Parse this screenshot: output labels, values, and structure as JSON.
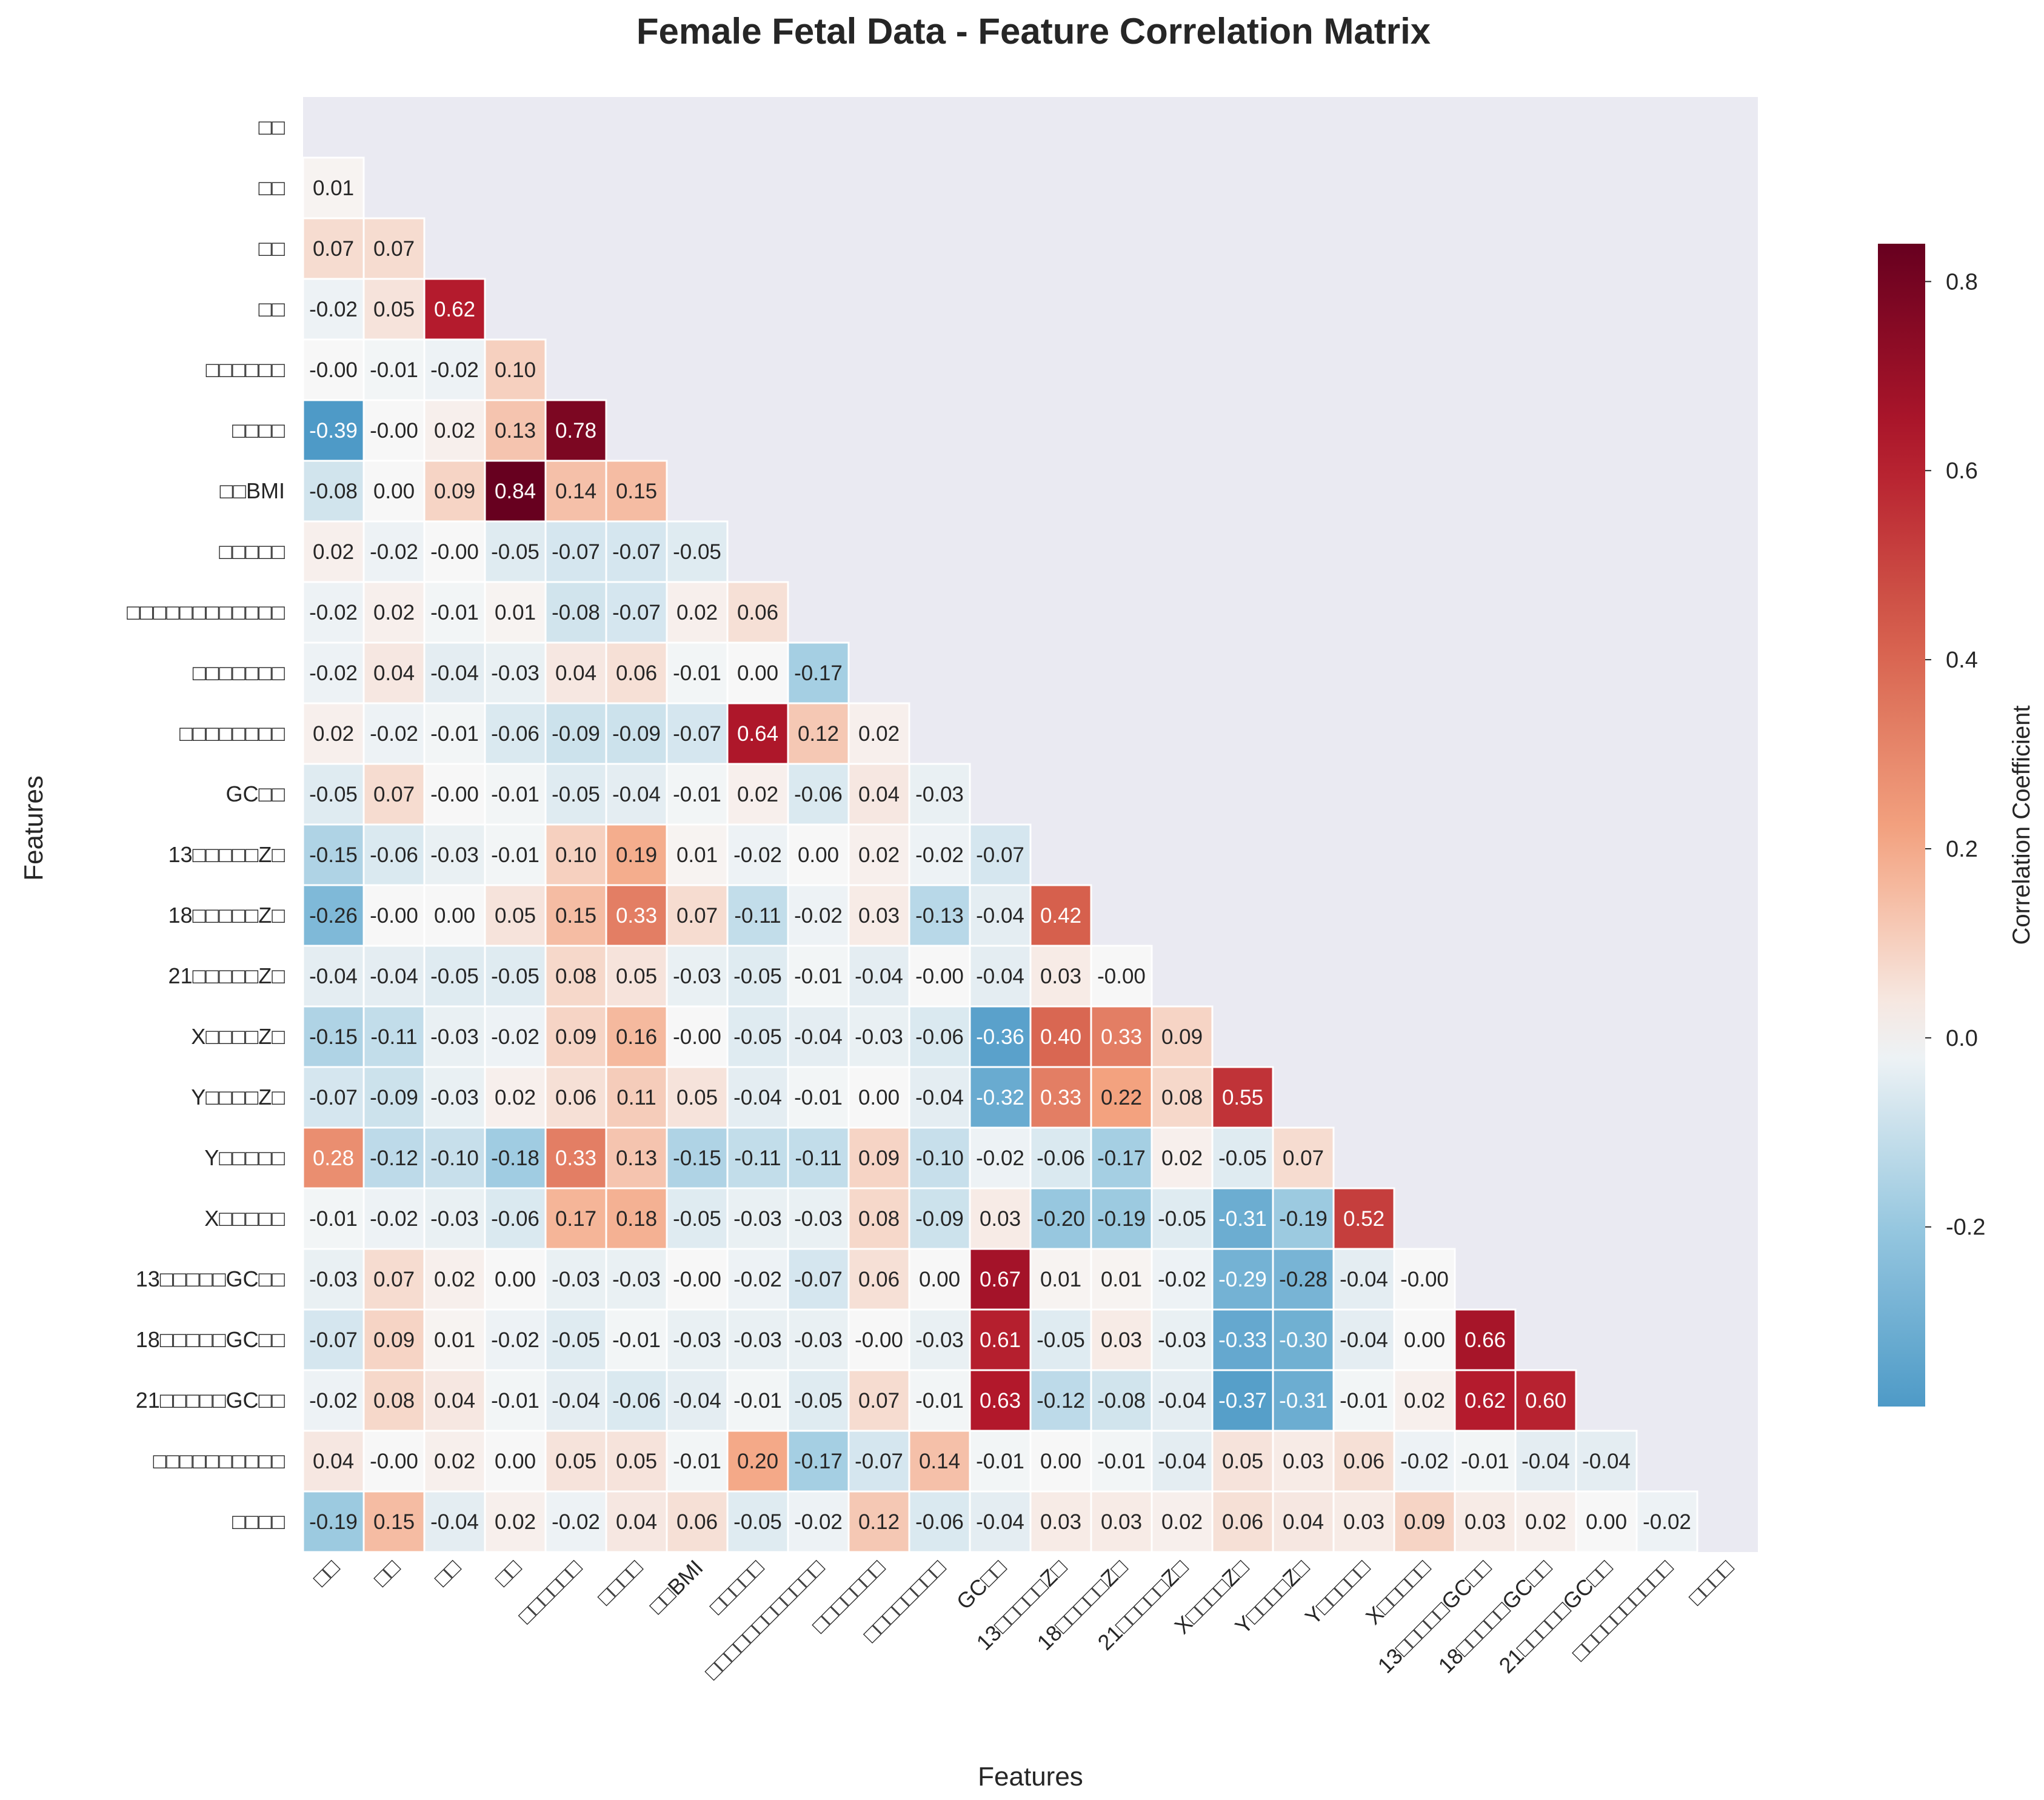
{
  "chart_data": {
    "type": "heatmap",
    "title": "Female Fetal Data - Feature Correlation Matrix",
    "xlabel": "Features",
    "ylabel": "Features",
    "colorbar_label": "Correlation Coefficient",
    "colormap": "RdBu_r",
    "vmin": -0.39,
    "vmax": 0.84,
    "center": 0.0,
    "colorbar_ticks": [
      "-0.2",
      "0.0",
      "0.2",
      "0.4",
      "0.6",
      "0.8"
    ],
    "colorbar_tick_values": [
      -0.2,
      0.0,
      0.2,
      0.4,
      0.6,
      0.8
    ],
    "mask": "upper-triangle-including-diagonal",
    "labels": [
      "□□",
      "□□",
      "□□",
      "□□",
      "□□□□□□",
      "□□□□",
      "□□BMI",
      "□□□□□",
      "□□□□□□□□□□□□",
      "□□□□□□□",
      "□□□□□□□□",
      "GC□□",
      "13□□□□□Z□",
      "18□□□□□Z□",
      "21□□□□□Z□",
      "X□□□□Z□",
      "Y□□□□Z□",
      "Y□□□□□",
      "X□□□□□",
      "13□□□□□GC□□",
      "18□□□□□GC□□",
      "21□□□□□GC□□",
      "□□□□□□□□□□",
      "□□□□"
    ],
    "matrix": [
      [],
      [
        0.01
      ],
      [
        0.07,
        0.07
      ],
      [
        -0.02,
        0.05,
        0.62
      ],
      [
        -0.0,
        -0.01,
        -0.02,
        0.1
      ],
      [
        -0.39,
        -0.0,
        0.02,
        0.13,
        0.78
      ],
      [
        -0.08,
        0.0,
        0.09,
        0.84,
        0.14,
        0.15
      ],
      [
        0.02,
        -0.02,
        -0.0,
        -0.05,
        -0.07,
        -0.07,
        -0.05
      ],
      [
        -0.02,
        0.02,
        -0.01,
        0.01,
        -0.08,
        -0.07,
        0.02,
        0.06
      ],
      [
        -0.02,
        0.04,
        -0.04,
        -0.03,
        0.04,
        0.06,
        -0.01,
        0.0,
        -0.17
      ],
      [
        0.02,
        -0.02,
        -0.01,
        -0.06,
        -0.09,
        -0.09,
        -0.07,
        0.64,
        0.12,
        0.02
      ],
      [
        -0.05,
        0.07,
        -0.0,
        -0.01,
        -0.05,
        -0.04,
        -0.01,
        0.02,
        -0.06,
        0.04,
        -0.03
      ],
      [
        -0.15,
        -0.06,
        -0.03,
        -0.01,
        0.1,
        0.19,
        0.01,
        -0.02,
        0.0,
        0.02,
        -0.02,
        -0.07
      ],
      [
        -0.26,
        -0.0,
        0.0,
        0.05,
        0.15,
        0.33,
        0.07,
        -0.11,
        -0.02,
        0.03,
        -0.13,
        -0.04,
        0.42
      ],
      [
        -0.04,
        -0.04,
        -0.05,
        -0.05,
        0.08,
        0.05,
        -0.03,
        -0.05,
        -0.01,
        -0.04,
        -0.0,
        -0.04,
        0.03,
        -0.0
      ],
      [
        -0.15,
        -0.11,
        -0.03,
        -0.02,
        0.09,
        0.16,
        -0.0,
        -0.05,
        -0.04,
        -0.03,
        -0.06,
        -0.36,
        0.4,
        0.33,
        0.09
      ],
      [
        -0.07,
        -0.09,
        -0.03,
        0.02,
        0.06,
        0.11,
        0.05,
        -0.04,
        -0.01,
        0.0,
        -0.04,
        -0.32,
        0.33,
        0.22,
        0.08,
        0.55
      ],
      [
        0.28,
        -0.12,
        -0.1,
        -0.18,
        0.33,
        0.13,
        -0.15,
        -0.11,
        -0.11,
        0.09,
        -0.1,
        -0.02,
        -0.06,
        -0.17,
        0.02,
        -0.05,
        0.07
      ],
      [
        -0.01,
        -0.02,
        -0.03,
        -0.06,
        0.17,
        0.18,
        -0.05,
        -0.03,
        -0.03,
        0.08,
        -0.09,
        0.03,
        -0.2,
        -0.19,
        -0.05,
        -0.31,
        -0.19,
        0.52
      ],
      [
        -0.03,
        0.07,
        0.02,
        0.0,
        -0.03,
        -0.03,
        -0.0,
        -0.02,
        -0.07,
        0.06,
        0.0,
        0.67,
        0.01,
        0.01,
        -0.02,
        -0.29,
        -0.28,
        -0.04,
        -0.0
      ],
      [
        -0.07,
        0.09,
        0.01,
        -0.02,
        -0.05,
        -0.01,
        -0.03,
        -0.03,
        -0.03,
        -0.0,
        -0.03,
        0.61,
        -0.05,
        0.03,
        -0.03,
        -0.33,
        -0.3,
        -0.04,
        0.0,
        0.66
      ],
      [
        -0.02,
        0.08,
        0.04,
        -0.01,
        -0.04,
        -0.06,
        -0.04,
        -0.01,
        -0.05,
        0.07,
        -0.01,
        0.63,
        -0.12,
        -0.08,
        -0.04,
        -0.37,
        -0.31,
        -0.01,
        0.02,
        0.62,
        0.6
      ],
      [
        0.04,
        -0.0,
        0.02,
        0.0,
        0.05,
        0.05,
        -0.01,
        0.2,
        -0.17,
        -0.07,
        0.14,
        -0.01,
        0.0,
        -0.01,
        -0.04,
        0.05,
        0.03,
        0.06,
        -0.02,
        -0.01,
        -0.04,
        -0.04
      ],
      [
        -0.19,
        0.15,
        -0.04,
        0.02,
        -0.02,
        0.04,
        0.06,
        -0.05,
        -0.02,
        0.12,
        -0.06,
        -0.04,
        0.03,
        0.03,
        0.02,
        0.06,
        0.04,
        0.03,
        0.09,
        0.03,
        0.02,
        0.0,
        -0.02
      ]
    ]
  }
}
